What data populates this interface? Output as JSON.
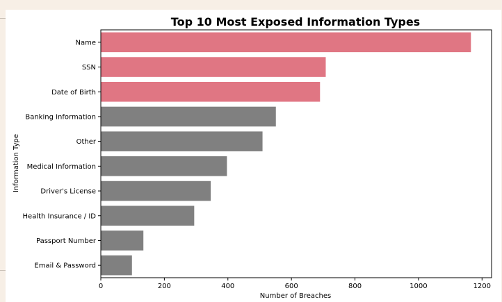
{
  "chart_data": {
    "type": "bar",
    "orientation": "horizontal",
    "title": "Top 10 Most Exposed Information Types",
    "xlabel": "Number of Breaches",
    "ylabel": "Information Type",
    "xlim": [
      0,
      1230
    ],
    "xticks": [
      0,
      200,
      400,
      600,
      800,
      1000,
      1200
    ],
    "grid": false,
    "categories": [
      "Name",
      "SSN",
      "Date of Birth",
      "Banking Information",
      "Other",
      "Medical Information",
      "Driver's License",
      "Health Insurance / ID",
      "Passport Number",
      "Email & Password"
    ],
    "values": [
      1165,
      708,
      690,
      551,
      509,
      397,
      346,
      294,
      134,
      98
    ],
    "highlight_count": 3,
    "colors": {
      "highlight": "#e07683",
      "default": "#808080",
      "axis": "#000000"
    }
  }
}
